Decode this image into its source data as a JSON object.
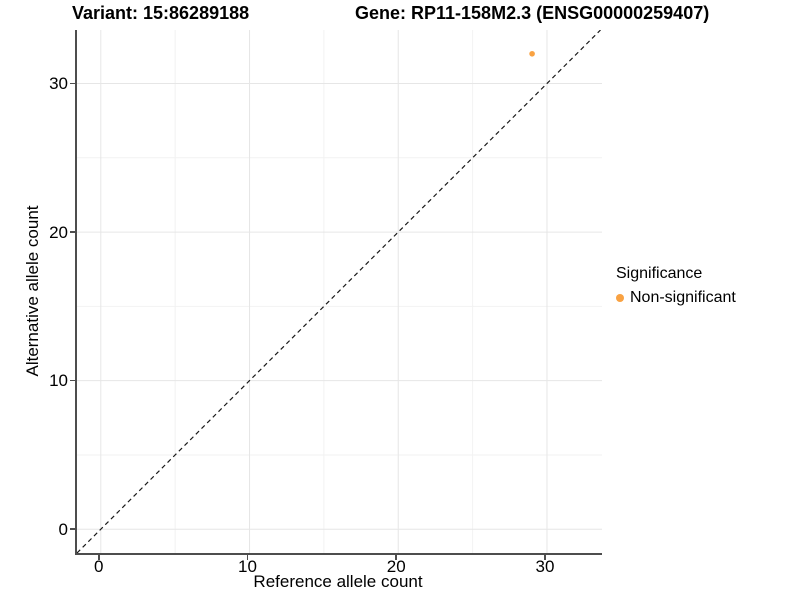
{
  "titles": {
    "left": "Variant: 15:86289188",
    "right": "Gene: RP11-158M2.3 (ENSG00000259407)"
  },
  "legend": {
    "title": "Significance",
    "items": [
      {
        "label": "Non-significant",
        "color": "#F9A242"
      }
    ]
  },
  "chart_data": {
    "type": "scatter",
    "title_left": "Variant: 15:86289188",
    "title_right": "Gene: RP11-158M2.3 (ENSG00000259407)",
    "xlabel": "Reference allele count",
    "ylabel": "Alternative allele count",
    "xlim": [
      -1.6,
      33.7
    ],
    "ylim": [
      -1.6,
      33.6
    ],
    "x_ticks": [
      0,
      10,
      20,
      30
    ],
    "y_ticks": [
      0,
      10,
      20,
      30
    ],
    "x_minor_ticks": [
      5,
      15,
      25
    ],
    "y_minor_ticks": [
      5,
      15,
      25
    ],
    "grid": true,
    "legend_position": "right",
    "series": [
      {
        "name": "Non-significant",
        "color": "#F9A242",
        "points": [
          {
            "x": 29,
            "y": 32
          }
        ]
      }
    ],
    "reference_line": {
      "type": "identity",
      "label": "y = x",
      "style": "dashed",
      "color": "#1a1a1a"
    },
    "style": {
      "axis_color": "#4d4d4d",
      "grid_major_color": "#e6e6e6",
      "grid_minor_color": "#f2f2f2",
      "background": "#ffffff",
      "point_radius": 2.8
    }
  }
}
